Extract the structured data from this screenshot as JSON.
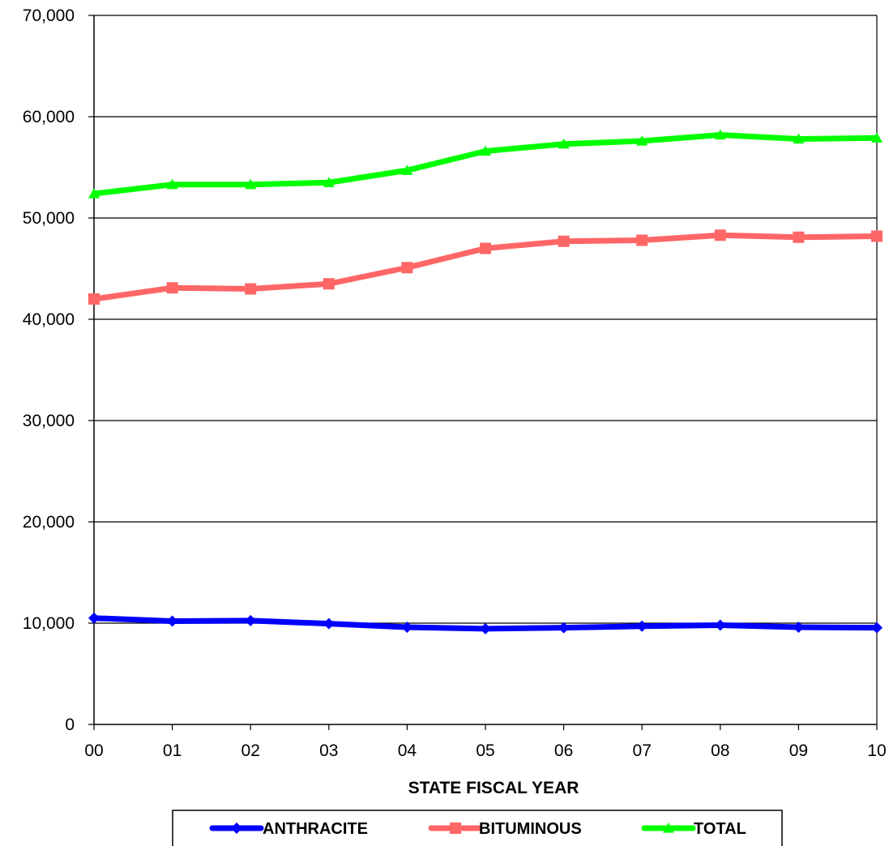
{
  "chart_data": {
    "type": "line",
    "title": "",
    "xlabel": "STATE FISCAL YEAR",
    "ylabel": "",
    "categories": [
      "00",
      "01",
      "02",
      "03",
      "04",
      "05",
      "06",
      "07",
      "08",
      "09",
      "10"
    ],
    "ylim": [
      0,
      70000
    ],
    "yticks": [
      0,
      10000,
      20000,
      30000,
      40000,
      50000,
      60000,
      70000
    ],
    "ytick_labels": [
      "0",
      "10,000",
      "20,000",
      "30,000",
      "40,000",
      "50,000",
      "60,000",
      "70,000"
    ],
    "grid": true,
    "legend_position": "bottom",
    "series": [
      {
        "name": "ANTHRACITE",
        "color": "#0000ff",
        "marker": "diamond",
        "values": [
          10500,
          10200,
          10250,
          9950,
          9600,
          9450,
          9550,
          9700,
          9800,
          9600,
          9550
        ]
      },
      {
        "name": "BITUMINOUS",
        "color": "#ff6666",
        "marker": "square",
        "values": [
          42000,
          43100,
          43000,
          43500,
          45100,
          47000,
          47700,
          47800,
          48300,
          48100,
          48200
        ]
      },
      {
        "name": "TOTAL",
        "color": "#00ff00",
        "marker": "triangle",
        "values": [
          52400,
          53300,
          53300,
          53500,
          54700,
          56600,
          57300,
          57600,
          58200,
          57800,
          57900
        ]
      }
    ]
  }
}
